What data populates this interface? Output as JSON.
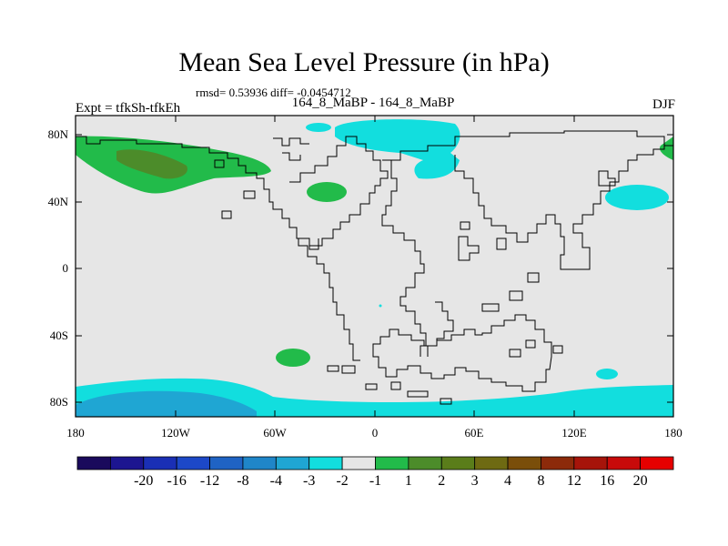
{
  "header": {
    "title": "Mean Sea Level Pressure (in hPa)",
    "stats": "rmsd= 0.53936 diff= -0.0454712",
    "left_label": "Expt = tfkSh-tfkEh",
    "center_label": "164_8_MaBP - 164_8_MaBP",
    "right_label": "DJF"
  },
  "map": {
    "lat_ticks": [
      "80N",
      "40N",
      "0",
      "40S",
      "80S"
    ],
    "lon_ticks": [
      "180",
      "120W",
      "60W",
      "0",
      "60E",
      "120E",
      "180"
    ]
  },
  "colorbar": {
    "colors": [
      "#1a0a5c",
      "#1c1590",
      "#1a2fb5",
      "#1c48c8",
      "#1f63c4",
      "#1f86c9",
      "#1fa6d3",
      "#12dede",
      "#e6e6e6",
      "#22bb4a",
      "#4c8c2a",
      "#5a7d1a",
      "#6e6a12",
      "#7a4e0a",
      "#8c2a0a",
      "#a6140a",
      "#c80a0a",
      "#e60000"
    ],
    "labels": [
      "-20",
      "-16",
      "-12",
      "-8",
      "-4",
      "-3",
      "-2",
      "-1",
      "1",
      "2",
      "3",
      "4",
      "8",
      "12",
      "16",
      "20"
    ]
  }
}
